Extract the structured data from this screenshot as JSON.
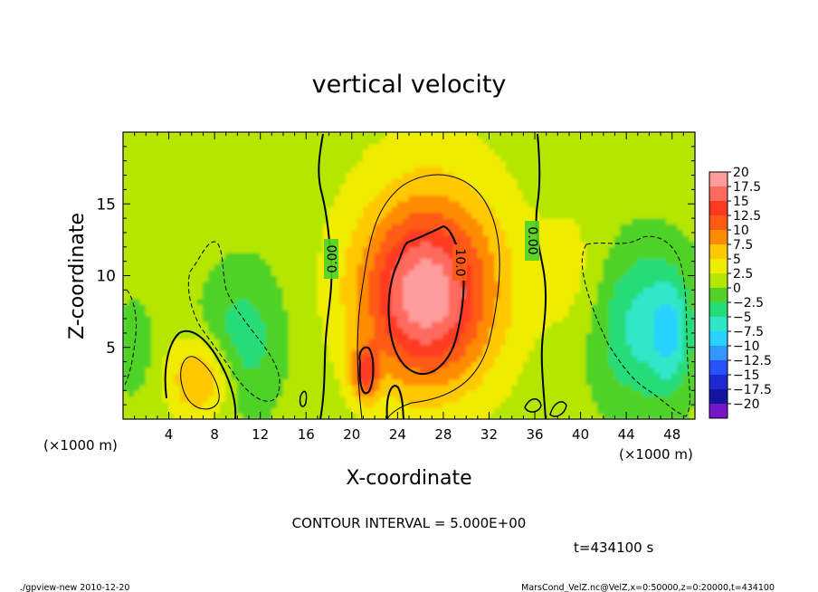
{
  "chart_data": {
    "type": "heatmap",
    "title": "vertical velocity",
    "xlabel": "X-coordinate",
    "ylabel": "Z-coordinate",
    "x_unit": "(×1000 m)",
    "xlim": [
      0,
      50
    ],
    "ylim": [
      0,
      20
    ],
    "xticks": [
      4,
      8,
      12,
      16,
      20,
      24,
      28,
      32,
      36,
      40,
      44,
      48
    ],
    "yticks": [
      5,
      10,
      15
    ],
    "colorbar": {
      "levels": [
        "20",
        "17.5",
        "15",
        "12.5",
        "10",
        "7.5",
        "5",
        "2.5",
        "0",
        "−2.5",
        "−5",
        "−7.5",
        "−10",
        "−12.5",
        "−15",
        "−17.5",
        "−20"
      ],
      "colors": [
        "#ff9c9c",
        "#ff6a5e",
        "#ff3a20",
        "#ff5a14",
        "#ff8c00",
        "#ffc800",
        "#f0ec00",
        "#b4e600",
        "#50d228",
        "#26dc78",
        "#30e6c8",
        "#28d2ff",
        "#3296ff",
        "#2850ff",
        "#1e28d2",
        "#1414a0",
        "#7814c8"
      ]
    },
    "contour_labels": [
      "0.00",
      "10.0",
      "0.00"
    ],
    "contour_interval": "CONTOUR INTERVAL = 5.000E+00",
    "time_label": "t=434100 s",
    "footer_left": "./gpview-new  2010-12-20",
    "footer_right": "MarsCond_VelZ.nc@VelZ,x=0:50000,z=0:20000,t=434100",
    "blobs": [
      {
        "x": 26.5,
        "z": 8.5,
        "rx": 5.5,
        "rz": 5.8,
        "amp": 14
      },
      {
        "x": 27.0,
        "z": 10.5,
        "rx": 7.5,
        "rz": 9.0,
        "amp": 5
      },
      {
        "x": 21.2,
        "z": 3.2,
        "rx": 1.2,
        "rz": 1.8,
        "amp": 10
      },
      {
        "x": 6.8,
        "z": 2.8,
        "rx": 2.8,
        "rz": 2.8,
        "amp": 7.5
      },
      {
        "x": 45.5,
        "z": 6.5,
        "rx": 4.5,
        "rz": 5.5,
        "amp": -7
      },
      {
        "x": 47.8,
        "z": 6.0,
        "rx": 1.5,
        "rz": 3.5,
        "amp": -5
      },
      {
        "x": 10.5,
        "z": 5.5,
        "rx": 3.5,
        "rz": 5.0,
        "amp": -5
      },
      {
        "x": 1.0,
        "z": 5.0,
        "rx": 1.5,
        "rz": 3.0,
        "amp": -3.5
      },
      {
        "x": 39.5,
        "z": 10.0,
        "rx": 3.0,
        "rz": 5.0,
        "amp": 2.5
      }
    ],
    "background_value": 1.0
  }
}
